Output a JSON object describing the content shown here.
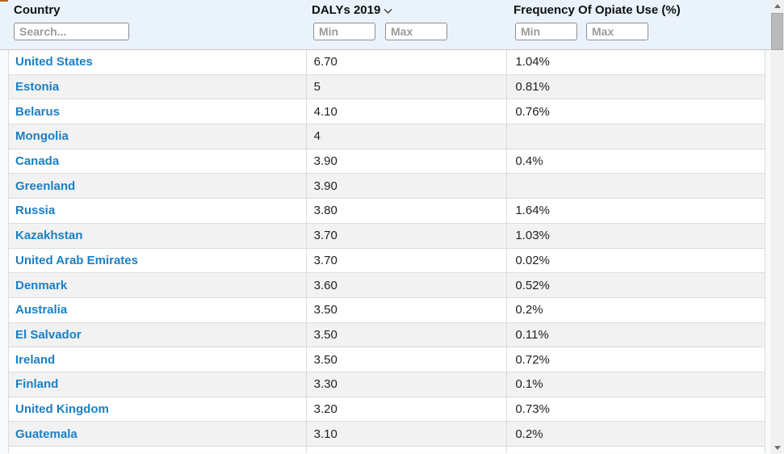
{
  "colors": {
    "header_bg": "#eaf3fb",
    "row_alt_bg": "#f2f2f2",
    "country_link": "#1b80c4",
    "border": "#dcdcdc"
  },
  "header": {
    "columns": [
      {
        "label": "Country",
        "search_placeholder": "Search..."
      },
      {
        "label": "DALYs 2019",
        "sort_icon": "chevron-down",
        "min_placeholder": "Min",
        "max_placeholder": "Max"
      },
      {
        "label": "Frequency Of Opiate Use (%)",
        "min_placeholder": "Min",
        "max_placeholder": "Max"
      }
    ]
  },
  "rows": [
    {
      "country": "United States",
      "dalys": "6.70",
      "freq": "1.04%"
    },
    {
      "country": "Estonia",
      "dalys": "5",
      "freq": "0.81%"
    },
    {
      "country": "Belarus",
      "dalys": "4.10",
      "freq": "0.76%"
    },
    {
      "country": "Mongolia",
      "dalys": "4",
      "freq": ""
    },
    {
      "country": "Canada",
      "dalys": "3.90",
      "freq": "0.4%"
    },
    {
      "country": "Greenland",
      "dalys": "3.90",
      "freq": ""
    },
    {
      "country": "Russia",
      "dalys": "3.80",
      "freq": "1.64%"
    },
    {
      "country": "Kazakhstan",
      "dalys": "3.70",
      "freq": "1.03%"
    },
    {
      "country": "United Arab Emirates",
      "dalys": "3.70",
      "freq": "0.02%"
    },
    {
      "country": "Denmark",
      "dalys": "3.60",
      "freq": "0.52%"
    },
    {
      "country": "Australia",
      "dalys": "3.50",
      "freq": "0.2%"
    },
    {
      "country": "El Salvador",
      "dalys": "3.50",
      "freq": "0.11%"
    },
    {
      "country": "Ireland",
      "dalys": "3.50",
      "freq": "0.72%"
    },
    {
      "country": "Finland",
      "dalys": "3.30",
      "freq": "0.1%"
    },
    {
      "country": "United Kingdom",
      "dalys": "3.20",
      "freq": "0.73%"
    },
    {
      "country": "Guatemala",
      "dalys": "3.10",
      "freq": "0.2%"
    }
  ]
}
